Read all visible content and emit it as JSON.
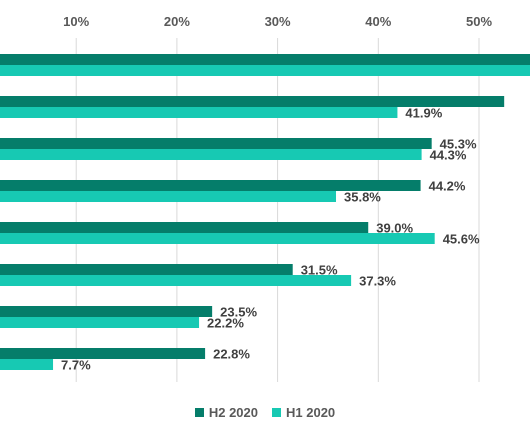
{
  "chart_data": {
    "type": "bar",
    "orientation": "horizontal",
    "x_ticks": [
      "10%",
      "20%",
      "30%",
      "40%",
      "50%"
    ],
    "xlim": [
      0,
      55
    ],
    "grid": true,
    "legend_position": "bottom",
    "series": [
      {
        "name": "H2 2020",
        "color": "#057D6A",
        "values": [
          57.0,
          52.5,
          45.3,
          44.2,
          39.0,
          31.5,
          23.5,
          22.8
        ],
        "labels": [
          "",
          "",
          "45.3%",
          "44.2%",
          "39.0%",
          "31.5%",
          "23.5%",
          "22.8%"
        ]
      },
      {
        "name": "H1 2020",
        "color": "#17C9B3",
        "values": [
          57.0,
          41.9,
          44.3,
          35.8,
          45.6,
          37.3,
          22.2,
          7.7
        ],
        "labels": [
          "",
          "41.9%",
          "44.3%",
          "35.8%",
          "45.6%",
          "37.3%",
          "22.2%",
          "7.7%"
        ]
      }
    ]
  },
  "legend": {
    "h2_label": "H2 2020",
    "h1_label": "H1 2020"
  }
}
